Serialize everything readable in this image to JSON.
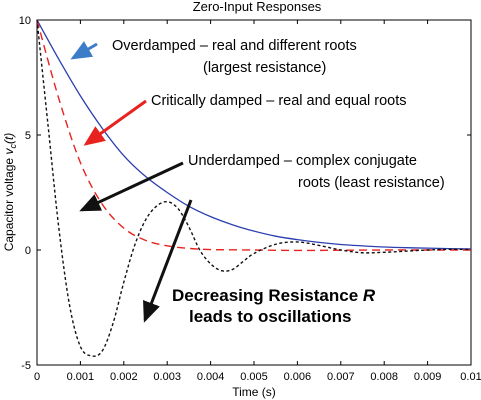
{
  "chart_data": {
    "type": "line",
    "title": "Zero-Input Responses",
    "xlabel": "Time (s)",
    "ylabel_main": "Capacitor voltage ",
    "ylabel_var": "v",
    "ylabel_sub": "c",
    "ylabel_arg": "(t)",
    "xlim": [
      0,
      0.01
    ],
    "ylim": [
      -5,
      10
    ],
    "x_ticks": [
      "0",
      "0.001",
      "0.002",
      "0.003",
      "0.004",
      "0.005",
      "0.006",
      "0.007",
      "0.008",
      "0.009",
      "0.01"
    ],
    "y_ticks": [
      "-5",
      "0",
      "5",
      "10"
    ],
    "grid": false,
    "series": [
      {
        "name": "Overdamped",
        "color": "#2b3fb0",
        "style": "solid",
        "x": [
          0,
          0.0005,
          0.001,
          0.0015,
          0.002,
          0.0025,
          0.003,
          0.0035,
          0.004,
          0.0045,
          0.005,
          0.0055,
          0.006,
          0.0065,
          0.007,
          0.0075,
          0.008,
          0.0085,
          0.009,
          0.0095,
          0.01
        ],
        "y": [
          10,
          8.3,
          6.7,
          5.3,
          4.1,
          3.2,
          2.5,
          1.9,
          1.45,
          1.1,
          0.82,
          0.6,
          0.45,
          0.33,
          0.24,
          0.18,
          0.13,
          0.1,
          0.08,
          0.06,
          0.05
        ]
      },
      {
        "name": "Critically damped",
        "color": "#e8231f",
        "style": "dashed",
        "x": [
          0,
          0.0005,
          0.001,
          0.0015,
          0.002,
          0.0025,
          0.003,
          0.0035,
          0.004,
          0.005,
          0.006,
          0.007,
          0.008,
          0.009,
          0.01
        ],
        "y": [
          10,
          6.6,
          3.8,
          2.0,
          0.95,
          0.42,
          0.18,
          0.07,
          0.02,
          0.0,
          -0.02,
          -0.01,
          0.0,
          0.0,
          0.0
        ]
      },
      {
        "name": "Underdamped",
        "color": "#111111",
        "style": "dotted",
        "x": [
          0,
          0.00025,
          0.0005,
          0.00075,
          0.001,
          0.00125,
          0.0015,
          0.00175,
          0.002,
          0.00225,
          0.0025,
          0.00275,
          0.003,
          0.00325,
          0.0035,
          0.00375,
          0.004,
          0.00425,
          0.0045,
          0.00475,
          0.005,
          0.0055,
          0.006,
          0.0065,
          0.007,
          0.0075,
          0.008,
          0.0085,
          0.009,
          0.0095,
          0.01
        ],
        "y": [
          10,
          5.5,
          1.0,
          -2.4,
          -4.2,
          -4.6,
          -4.4,
          -3.2,
          -1.4,
          0.2,
          1.3,
          1.9,
          2.1,
          1.8,
          1.0,
          0.0,
          -0.6,
          -0.9,
          -0.85,
          -0.5,
          -0.15,
          0.25,
          0.35,
          0.2,
          0.0,
          -0.12,
          -0.1,
          -0.05,
          0.0,
          0.03,
          0.02
        ]
      }
    ],
    "annotations": [
      {
        "id": "over1",
        "text": "Overdamped  – real and different roots"
      },
      {
        "id": "over2",
        "text": "(largest resistance)"
      },
      {
        "id": "crit1",
        "text": "Critically damped  – real and equal roots"
      },
      {
        "id": "under1",
        "text": "Underdamped  – complex conjugate"
      },
      {
        "id": "under2",
        "text": "roots (least resistance)"
      },
      {
        "id": "dec1",
        "text": "Decreasing Resistance ",
        "emph": "R"
      },
      {
        "id": "dec2",
        "text": "leads to oscillations"
      }
    ],
    "arrow_colors": {
      "blue": "#3d7cc9",
      "red": "#e8231f",
      "black": "#111111"
    }
  }
}
